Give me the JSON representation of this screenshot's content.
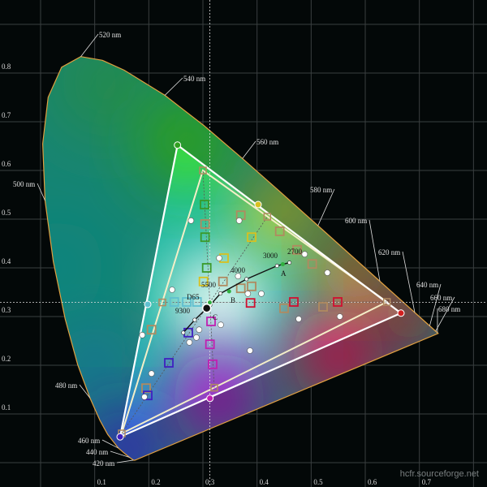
{
  "watermark": "hcfr.sourceforge.net",
  "chart_data": {
    "type": "scatter",
    "title": "",
    "xlabel": "",
    "ylabel": "",
    "xlim": [
      0,
      0.8
    ],
    "ylim": [
      0,
      0.9
    ],
    "grid": true,
    "x_ticks": [
      "0.1",
      "0.2",
      "0.3",
      "0.4",
      "0.5",
      "0.6",
      "0.7"
    ],
    "y_ticks": [
      "0.1",
      "0.2",
      "0.3",
      "0.4",
      "0.5",
      "0.6",
      "0.7",
      "0.8"
    ],
    "spectral_locus": [
      [
        0.1741,
        0.005
      ],
      [
        0.1714,
        0.0051
      ],
      [
        0.1644,
        0.0109
      ],
      [
        0.1566,
        0.0177
      ],
      [
        0.144,
        0.0297
      ],
      [
        0.1241,
        0.0578
      ],
      [
        0.1096,
        0.0868
      ],
      [
        0.0913,
        0.1327
      ],
      [
        0.0687,
        0.2007
      ],
      [
        0.0454,
        0.295
      ],
      [
        0.0235,
        0.4127
      ],
      [
        0.0082,
        0.5384
      ],
      [
        0.0039,
        0.6548
      ],
      [
        0.0139,
        0.7502
      ],
      [
        0.0389,
        0.812
      ],
      [
        0.0743,
        0.8338
      ],
      [
        0.1142,
        0.8262
      ],
      [
        0.1547,
        0.8059
      ],
      [
        0.2296,
        0.7543
      ],
      [
        0.3016,
        0.6923
      ],
      [
        0.3731,
        0.6245
      ],
      [
        0.4441,
        0.5547
      ],
      [
        0.5125,
        0.4866
      ],
      [
        0.5752,
        0.4242
      ],
      [
        0.627,
        0.3725
      ],
      [
        0.6915,
        0.3083
      ],
      [
        0.719,
        0.2809
      ],
      [
        0.73,
        0.27
      ],
      [
        0.7334,
        0.2666
      ],
      [
        0.7347,
        0.2653
      ]
    ],
    "wavelength_labels": [
      {
        "text": "520 nm",
        "x": 0.0743,
        "y": 0.8338
      },
      {
        "text": "540 nm",
        "x": 0.2296,
        "y": 0.7543
      },
      {
        "text": "560 nm",
        "x": 0.3731,
        "y": 0.6245
      },
      {
        "text": "580 nm",
        "x": 0.5125,
        "y": 0.4866
      },
      {
        "text": "600 nm",
        "x": 0.627,
        "y": 0.3725
      },
      {
        "text": "620 nm",
        "x": 0.6915,
        "y": 0.3083
      },
      {
        "text": "640 nm",
        "x": 0.719,
        "y": 0.2809
      },
      {
        "text": "660 nm",
        "x": 0.73,
        "y": 0.27
      },
      {
        "text": "680 nm",
        "x": 0.7334,
        "y": 0.2666
      },
      {
        "text": "500 nm",
        "x": 0.0082,
        "y": 0.5384
      },
      {
        "text": "480 nm",
        "x": 0.0913,
        "y": 0.1327
      },
      {
        "text": "460 nm",
        "x": 0.144,
        "y": 0.0297
      },
      {
        "text": "440 nm",
        "x": 0.1644,
        "y": 0.0109
      },
      {
        "text": "420 nm",
        "x": 0.1714,
        "y": 0.0051
      }
    ],
    "reference_gamut": {
      "red": [
        0.64,
        0.33
      ],
      "green": [
        0.3,
        0.6
      ],
      "blue": [
        0.15,
        0.06
      ],
      "cyan": [
        0.225,
        0.329
      ],
      "yellow": [
        0.419,
        0.505
      ],
      "magenta": [
        0.321,
        0.154
      ]
    },
    "measured_gamut": {
      "red": [
        0.666,
        0.307
      ],
      "green": [
        0.253,
        0.652
      ],
      "blue": [
        0.147,
        0.053
      ],
      "cyan": [
        0.198,
        0.325
      ],
      "yellow": [
        0.402,
        0.53
      ],
      "magenta": [
        0.313,
        0.132
      ]
    },
    "reference_white": {
      "label": "D65",
      "x": 0.3127,
      "y": 0.329
    },
    "measured_white": [
      0.307,
      0.317
    ],
    "planckian_locus": [
      {
        "label": "",
        "x": 0.2637,
        "y": 0.2668
      },
      {
        "label": "9300",
        "x": 0.2848,
        "y": 0.2932
      },
      {
        "label": "",
        "x": 0.3135,
        "y": 0.3237
      },
      {
        "label": "5500",
        "x": 0.3324,
        "y": 0.3474
      },
      {
        "label": "4000",
        "x": 0.3805,
        "y": 0.3768
      },
      {
        "label": "3000",
        "x": 0.4369,
        "y": 0.4041
      },
      {
        "label": "2700",
        "x": 0.4599,
        "y": 0.4106
      }
    ],
    "illuminants": [
      {
        "label": "A",
        "x": 0.4476,
        "y": 0.4074
      },
      {
        "label": "B",
        "x": 0.3484,
        "y": 0.3516
      },
      {
        "label": "C",
        "x": 0.3101,
        "y": 0.3162
      }
    ],
    "measured_points": [
      [
        0.278,
        0.497
      ],
      [
        0.367,
        0.497
      ],
      [
        0.33,
        0.42
      ],
      [
        0.243,
        0.355
      ],
      [
        0.383,
        0.347
      ],
      [
        0.408,
        0.347
      ],
      [
        0.488,
        0.428
      ],
      [
        0.53,
        0.39
      ],
      [
        0.477,
        0.295
      ],
      [
        0.553,
        0.3
      ],
      [
        0.387,
        0.23
      ],
      [
        0.275,
        0.247
      ],
      [
        0.293,
        0.273
      ],
      [
        0.333,
        0.283
      ],
      [
        0.188,
        0.262
      ],
      [
        0.205,
        0.183
      ],
      [
        0.192,
        0.135
      ],
      [
        0.365,
        0.383
      ],
      [
        0.288,
        0.257
      ]
    ],
    "target_points": [
      {
        "x": 0.303,
        "y": 0.53,
        "color": "#3a9a2a"
      },
      {
        "x": 0.304,
        "y": 0.463,
        "color": "#3a9a2a"
      },
      {
        "x": 0.307,
        "y": 0.4,
        "color": "#3a9a2a"
      },
      {
        "x": 0.304,
        "y": 0.49,
        "color": "#b08a60"
      },
      {
        "x": 0.37,
        "y": 0.508,
        "color": "#b08a60"
      },
      {
        "x": 0.39,
        "y": 0.463,
        "color": "#d8c020"
      },
      {
        "x": 0.339,
        "y": 0.42,
        "color": "#d8c020"
      },
      {
        "x": 0.301,
        "y": 0.372,
        "color": "#d8c020"
      },
      {
        "x": 0.337,
        "y": 0.372,
        "color": "#b08a60"
      },
      {
        "x": 0.37,
        "y": 0.358,
        "color": "#b08a60"
      },
      {
        "x": 0.39,
        "y": 0.362,
        "color": "#b08a60"
      },
      {
        "x": 0.388,
        "y": 0.328,
        "color": "#d01030"
      },
      {
        "x": 0.468,
        "y": 0.33,
        "color": "#d01030"
      },
      {
        "x": 0.549,
        "y": 0.33,
        "color": "#d01030"
      },
      {
        "x": 0.45,
        "y": 0.317,
        "color": "#b08a60"
      },
      {
        "x": 0.522,
        "y": 0.32,
        "color": "#b08a60"
      },
      {
        "x": 0.315,
        "y": 0.29,
        "color": "#c020b0"
      },
      {
        "x": 0.313,
        "y": 0.243,
        "color": "#c020b0"
      },
      {
        "x": 0.318,
        "y": 0.202,
        "color": "#c020b0"
      },
      {
        "x": 0.237,
        "y": 0.205,
        "color": "#4020c0"
      },
      {
        "x": 0.273,
        "y": 0.267,
        "color": "#4020c0"
      },
      {
        "x": 0.205,
        "y": 0.273,
        "color": "#b08a60"
      },
      {
        "x": 0.247,
        "y": 0.33,
        "color": "#60c0d0"
      },
      {
        "x": 0.27,
        "y": 0.33,
        "color": "#60c0d0"
      },
      {
        "x": 0.289,
        "y": 0.33,
        "color": "#60c0d0"
      },
      {
        "x": 0.195,
        "y": 0.153,
        "color": "#b08a60"
      },
      {
        "x": 0.198,
        "y": 0.138,
        "color": "#4020c0"
      },
      {
        "x": 0.442,
        "y": 0.475,
        "color": "#b08a60"
      },
      {
        "x": 0.502,
        "y": 0.408,
        "color": "#b08a60"
      },
      {
        "x": 0.474,
        "y": 0.437,
        "color": "#b08a60"
      }
    ]
  }
}
